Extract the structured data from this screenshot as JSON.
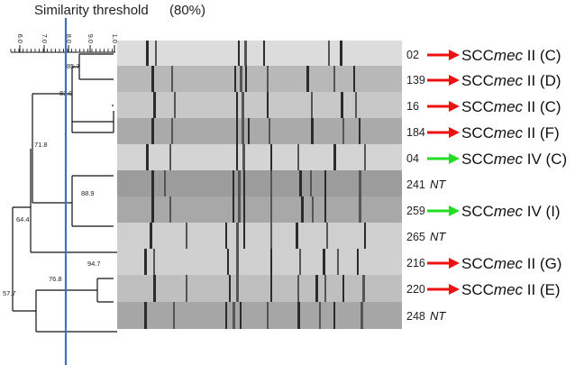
{
  "title": "Similarity threshold",
  "threshold": "(80%)",
  "threshold_value": 80,
  "scale_ticks": [
    "6.0",
    "7.0",
    "8.0",
    "9.0",
    "1.0"
  ],
  "node_values": [
    "85.7",
    "83.0",
    "71.8",
    "64.4",
    "57.7",
    "88.9",
    "94.7",
    "76.8"
  ],
  "strains": [
    {
      "id": "02",
      "arrow": "red",
      "prefix": "SCC",
      "mec": "mec",
      "suffix": " II (C)"
    },
    {
      "id": "139",
      "arrow": "red",
      "prefix": "SCC",
      "mec": "mec",
      "suffix": " II (D)"
    },
    {
      "id": "16",
      "arrow": "red",
      "prefix": "SCC",
      "mec": "mec",
      "suffix": " II (C)"
    },
    {
      "id": "184",
      "arrow": "red",
      "prefix": "SCC",
      "mec": "mec",
      "suffix": " II (F)"
    },
    {
      "id": "04",
      "arrow": "green",
      "prefix": "SCC",
      "mec": "mec",
      "suffix": " IV (C)"
    },
    {
      "id": "241",
      "arrow": "none",
      "nt": "NT"
    },
    {
      "id": "259",
      "arrow": "green",
      "prefix": "SCC",
      "mec": "mec",
      "suffix": " IV (I)"
    },
    {
      "id": "265",
      "arrow": "none",
      "nt": "NT"
    },
    {
      "id": "216",
      "arrow": "red",
      "prefix": "SCC",
      "mec": "mec",
      "suffix": " II (G)"
    },
    {
      "id": "220",
      "arrow": "red",
      "prefix": "SCC",
      "mec": "mec",
      "suffix": " II (E)"
    },
    {
      "id": "248",
      "arrow": "none",
      "nt": "NT"
    }
  ],
  "colors": {
    "threshold_line": "#3b6fc4",
    "red_arrow": "#ee1111",
    "green_arrow": "#22dd22",
    "tree": "#111111"
  }
}
